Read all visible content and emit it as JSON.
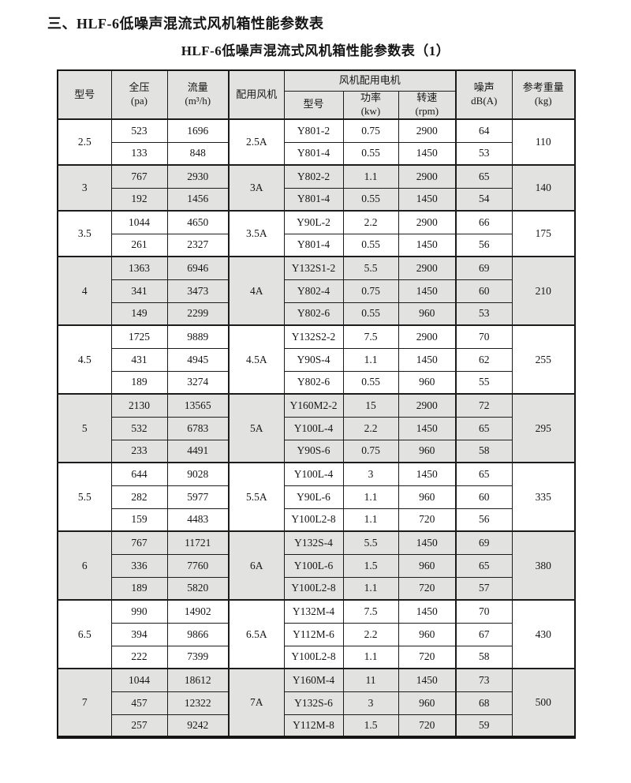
{
  "page": {
    "title": "三、HLF-6低噪声混流式风机箱性能参数表",
    "subtitle": "HLF-6低噪声混流式风机箱性能参数表（1）"
  },
  "table": {
    "headers": {
      "model": "型号",
      "pressure": {
        "l1": "全压",
        "l2": "(pa)"
      },
      "flow": {
        "l1": "流量",
        "l2": "(m³/h)"
      },
      "fan": "配用风机",
      "motor_group": "风机配用电机",
      "motor_model": "型号",
      "power": {
        "l1": "功率",
        "l2": "(kw)"
      },
      "speed": {
        "l1": "转速",
        "l2": "(rpm)"
      },
      "noise": {
        "l1": "噪声",
        "l2": "dB(A)"
      },
      "weight": {
        "l1": "参考重量",
        "l2": "(kg)"
      }
    },
    "groups": [
      {
        "model": "2.5",
        "fan": "2.5A",
        "weight": "110",
        "rows": [
          {
            "pressure": "523",
            "flow": "1696",
            "motor": "Y801-2",
            "power": "0.75",
            "speed": "2900",
            "noise": "64"
          },
          {
            "pressure": "133",
            "flow": "848",
            "motor": "Y801-4",
            "power": "0.55",
            "speed": "1450",
            "noise": "53"
          }
        ]
      },
      {
        "model": "3",
        "fan": "3A",
        "weight": "140",
        "rows": [
          {
            "pressure": "767",
            "flow": "2930",
            "motor": "Y802-2",
            "power": "1.1",
            "speed": "2900",
            "noise": "65"
          },
          {
            "pressure": "192",
            "flow": "1456",
            "motor": "Y801-4",
            "power": "0.55",
            "speed": "1450",
            "noise": "54"
          }
        ]
      },
      {
        "model": "3.5",
        "fan": "3.5A",
        "weight": "175",
        "rows": [
          {
            "pressure": "1044",
            "flow": "4650",
            "motor": "Y90L-2",
            "power": "2.2",
            "speed": "2900",
            "noise": "66"
          },
          {
            "pressure": "261",
            "flow": "2327",
            "motor": "Y801-4",
            "power": "0.55",
            "speed": "1450",
            "noise": "56"
          }
        ]
      },
      {
        "model": "4",
        "fan": "4A",
        "weight": "210",
        "rows": [
          {
            "pressure": "1363",
            "flow": "6946",
            "motor": "Y132S1-2",
            "power": "5.5",
            "speed": "2900",
            "noise": "69"
          },
          {
            "pressure": "341",
            "flow": "3473",
            "motor": "Y802-4",
            "power": "0.75",
            "speed": "1450",
            "noise": "60"
          },
          {
            "pressure": "149",
            "flow": "2299",
            "motor": "Y802-6",
            "power": "0.55",
            "speed": "960",
            "noise": "53"
          }
        ]
      },
      {
        "model": "4.5",
        "fan": "4.5A",
        "weight": "255",
        "rows": [
          {
            "pressure": "1725",
            "flow": "9889",
            "motor": "Y132S2-2",
            "power": "7.5",
            "speed": "2900",
            "noise": "70"
          },
          {
            "pressure": "431",
            "flow": "4945",
            "motor": "Y90S-4",
            "power": "1.1",
            "speed": "1450",
            "noise": "62"
          },
          {
            "pressure": "189",
            "flow": "3274",
            "motor": "Y802-6",
            "power": "0.55",
            "speed": "960",
            "noise": "55"
          }
        ]
      },
      {
        "model": "5",
        "fan": "5A",
        "weight": "295",
        "rows": [
          {
            "pressure": "2130",
            "flow": "13565",
            "motor": "Y160M2-2",
            "power": "15",
            "speed": "2900",
            "noise": "72"
          },
          {
            "pressure": "532",
            "flow": "6783",
            "motor": "Y100L-4",
            "power": "2.2",
            "speed": "1450",
            "noise": "65"
          },
          {
            "pressure": "233",
            "flow": "4491",
            "motor": "Y90S-6",
            "power": "0.75",
            "speed": "960",
            "noise": "58"
          }
        ]
      },
      {
        "model": "5.5",
        "fan": "5.5A",
        "weight": "335",
        "rows": [
          {
            "pressure": "644",
            "flow": "9028",
            "motor": "Y100L-4",
            "power": "3",
            "speed": "1450",
            "noise": "65"
          },
          {
            "pressure": "282",
            "flow": "5977",
            "motor": "Y90L-6",
            "power": "1.1",
            "speed": "960",
            "noise": "60"
          },
          {
            "pressure": "159",
            "flow": "4483",
            "motor": "Y100L2-8",
            "power": "1.1",
            "speed": "720",
            "noise": "56"
          }
        ]
      },
      {
        "model": "6",
        "fan": "6A",
        "weight": "380",
        "rows": [
          {
            "pressure": "767",
            "flow": "11721",
            "motor": "Y132S-4",
            "power": "5.5",
            "speed": "1450",
            "noise": "69"
          },
          {
            "pressure": "336",
            "flow": "7760",
            "motor": "Y100L-6",
            "power": "1.5",
            "speed": "960",
            "noise": "65"
          },
          {
            "pressure": "189",
            "flow": "5820",
            "motor": "Y100L2-8",
            "power": "1.1",
            "speed": "720",
            "noise": "57"
          }
        ]
      },
      {
        "model": "6.5",
        "fan": "6.5A",
        "weight": "430",
        "rows": [
          {
            "pressure": "990",
            "flow": "14902",
            "motor": "Y132M-4",
            "power": "7.5",
            "speed": "1450",
            "noise": "70"
          },
          {
            "pressure": "394",
            "flow": "9866",
            "motor": "Y112M-6",
            "power": "2.2",
            "speed": "960",
            "noise": "67"
          },
          {
            "pressure": "222",
            "flow": "7399",
            "motor": "Y100L2-8",
            "power": "1.1",
            "speed": "720",
            "noise": "58"
          }
        ]
      },
      {
        "model": "7",
        "fan": "7A",
        "weight": "500",
        "rows": [
          {
            "pressure": "1044",
            "flow": "18612",
            "motor": "Y160M-4",
            "power": "11",
            "speed": "1450",
            "noise": "73"
          },
          {
            "pressure": "457",
            "flow": "12322",
            "motor": "Y132S-6",
            "power": "3",
            "speed": "960",
            "noise": "68"
          },
          {
            "pressure": "257",
            "flow": "9242",
            "motor": "Y112M-8",
            "power": "1.5",
            "speed": "720",
            "noise": "59"
          }
        ]
      }
    ]
  }
}
